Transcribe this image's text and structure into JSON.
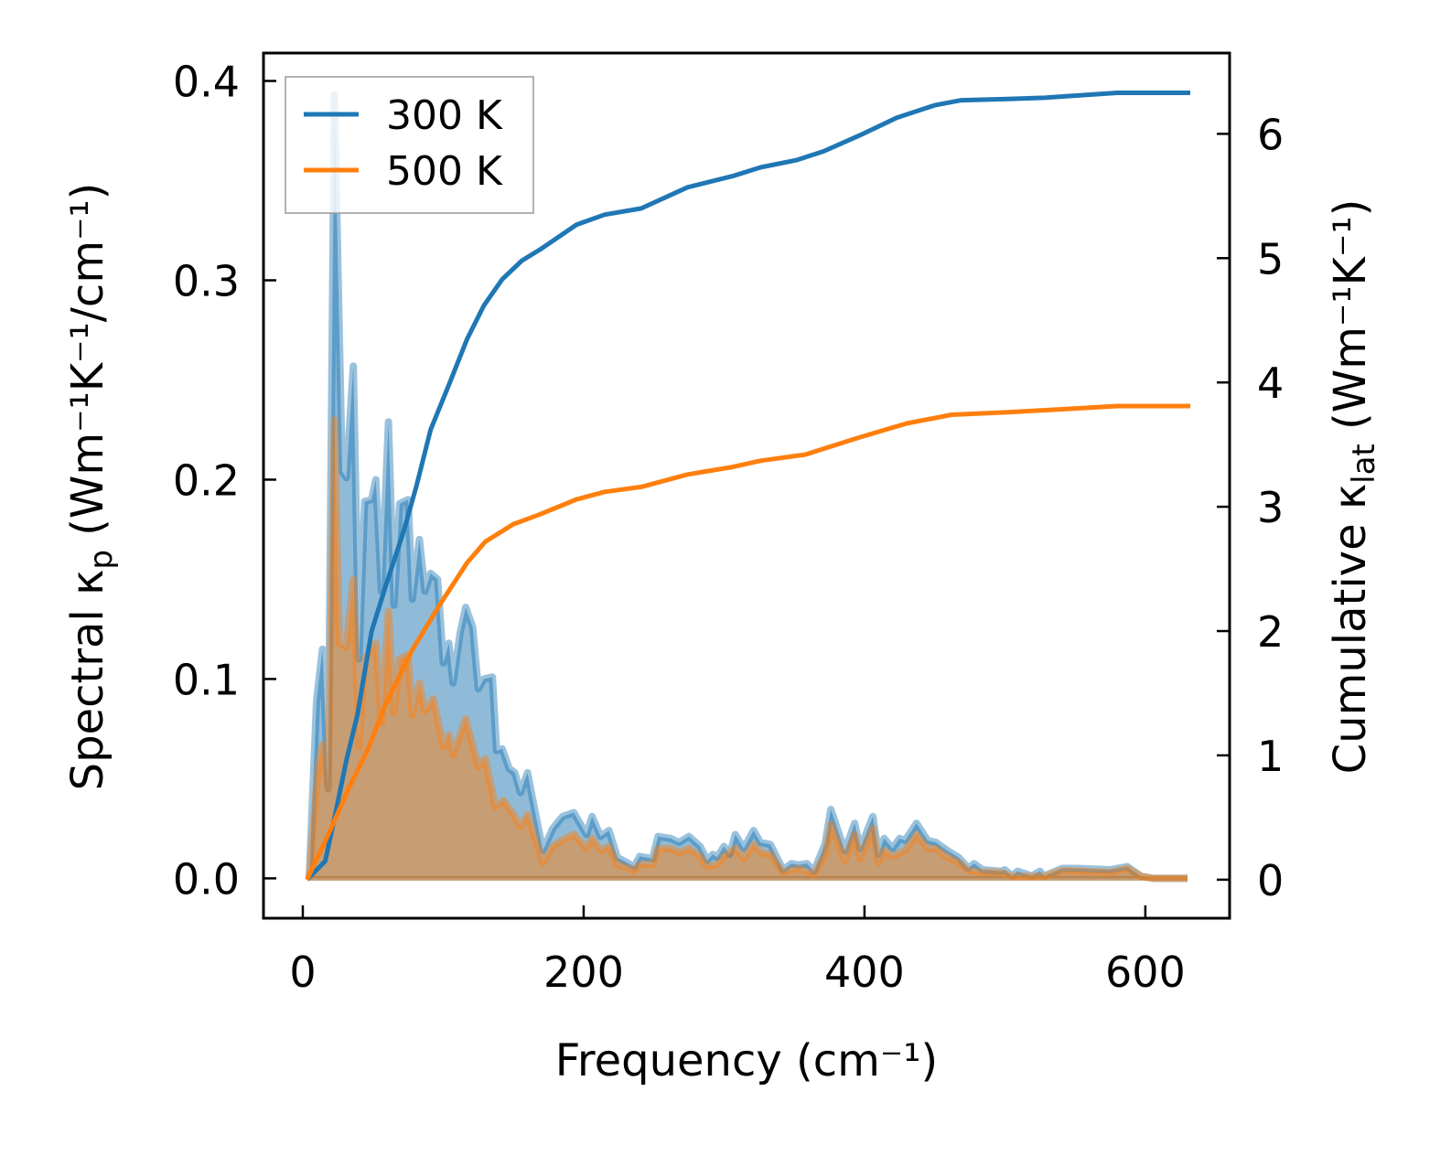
{
  "chart_data": {
    "type": "area",
    "xlabel": "Frequency (cm⁻¹)",
    "ylabel_left": {
      "prefix": "Spectral κ",
      "sub": "p",
      "suffix": " (Wm⁻¹K⁻¹/cm⁻¹)"
    },
    "ylabel_right": {
      "prefix": "Cumulative κ",
      "sub": "lat",
      "suffix": " (Wm⁻¹K⁻¹)"
    },
    "xlim": [
      -28,
      660
    ],
    "ylim_left": [
      -0.02,
      0.414
    ],
    "ylim_right": [
      -0.31,
      6.65
    ],
    "xticks": [
      0,
      200,
      400,
      600
    ],
    "xtick_labels": [
      "0",
      "200",
      "400",
      "600"
    ],
    "yticks_left": [
      0,
      0.1,
      0.2,
      0.3,
      0.4
    ],
    "ytick_labels_left": [
      "0.0",
      "0.1",
      "0.2",
      "0.3",
      "0.4"
    ],
    "yticks_right": [
      0,
      1,
      2,
      3,
      4,
      5,
      6
    ],
    "ytick_labels_right": [
      "0",
      "1",
      "2",
      "3",
      "4",
      "5",
      "6"
    ],
    "legend": {
      "placement": "top-left",
      "entries": [
        "300 K",
        "500 K"
      ]
    },
    "colors": {
      "300K": "#1f77b4",
      "500K": "#ff7f0e"
    },
    "series": [
      {
        "name": "300 K spectral",
        "axis": "left",
        "x": [
          4.6,
          9.8,
          14,
          18,
          22.5,
          28,
          31,
          36,
          40,
          44,
          49,
          52,
          56,
          61,
          65,
          69,
          75,
          78,
          83,
          87,
          91,
          96,
          100,
          104,
          107,
          112,
          116,
          121,
          125,
          129,
          135,
          138,
          142,
          147,
          151,
          155,
          160,
          165,
          171,
          178,
          185,
          193,
          202,
          206,
          212,
          218,
          224,
          236,
          240,
          249,
          253,
          262,
          268,
          275,
          283,
          288,
          292,
          295,
          300,
          304,
          308,
          314,
          321,
          326,
          333,
          342,
          348,
          353,
          359,
          364,
          372,
          376,
          386,
          393,
          397,
          406,
          410,
          414,
          420,
          425,
          429,
          437,
          445,
          451,
          458,
          467,
          474,
          478,
          484,
          497,
          500,
          505,
          509,
          519,
          525,
          528,
          541,
          551,
          575,
          587,
          597,
          606,
          630
        ],
        "y": [
          0,
          0.089,
          0.115,
          0.045,
          0.393,
          0.204,
          0.201,
          0.257,
          0.11,
          0.189,
          0.19,
          0.2,
          0.144,
          0.229,
          0.137,
          0.188,
          0.19,
          0.14,
          0.17,
          0.144,
          0.153,
          0.15,
          0.108,
          0.118,
          0.098,
          0.123,
          0.136,
          0.126,
          0.095,
          0.1,
          0.101,
          0.064,
          0.065,
          0.055,
          0.053,
          0.043,
          0.053,
          0.035,
          0.014,
          0.025,
          0.031,
          0.033,
          0.022,
          0.031,
          0.021,
          0.024,
          0.0105,
          0.0059,
          0.011,
          0.0098,
          0.021,
          0.02,
          0.018,
          0.021,
          0.016,
          0.009,
          0.012,
          0.0105,
          0.016,
          0.012,
          0.022,
          0.015,
          0.024,
          0.018,
          0.017,
          0.0043,
          0.0074,
          0.0067,
          0.0074,
          0.0036,
          0.0175,
          0.0346,
          0.0137,
          0.0276,
          0.015,
          0.031,
          0.012,
          0.02,
          0.015,
          0.02,
          0.019,
          0.0276,
          0.019,
          0.018,
          0.0144,
          0.0105,
          0.0051,
          0.0074,
          0.0043,
          0.0036,
          0.0043,
          0.0012,
          0.0036,
          0.0012,
          0.0036,
          0.0012,
          0.005,
          0.005,
          0.0043,
          0.0059,
          0.001,
          0,
          0
        ]
      },
      {
        "name": "500 K spectral",
        "axis": "left",
        "x": [
          4.6,
          11,
          14,
          18,
          22.5,
          26,
          31,
          36,
          40,
          44,
          52,
          56,
          61,
          65,
          69,
          75,
          78,
          83,
          87,
          93,
          100,
          104,
          107,
          116,
          125,
          130,
          137,
          143,
          150,
          155,
          160,
          165,
          171,
          178,
          187,
          193,
          202,
          206,
          212,
          218,
          224,
          236,
          240,
          249,
          253,
          262,
          268,
          275,
          283,
          288,
          295,
          300,
          308,
          314,
          321,
          326,
          333,
          342,
          353,
          364,
          372,
          376,
          386,
          393,
          397,
          406,
          410,
          414,
          420,
          429,
          437,
          445,
          451,
          458,
          467,
          474,
          484,
          497,
          505,
          519,
          528,
          541,
          575,
          587,
          597,
          606,
          630
        ],
        "y": [
          0,
          0.057,
          0.067,
          0.045,
          0.23,
          0.118,
          0.116,
          0.15,
          0.066,
          0.11,
          0.118,
          0.078,
          0.134,
          0.083,
          0.11,
          0.112,
          0.082,
          0.098,
          0.084,
          0.09,
          0.066,
          0.072,
          0.062,
          0.08,
          0.056,
          0.06,
          0.036,
          0.039,
          0.032,
          0.026,
          0.032,
          0.021,
          0.008,
          0.016,
          0.02,
          0.022,
          0.015,
          0.02,
          0.014,
          0.016,
          0.007,
          0.004,
          0.007,
          0.007,
          0.015,
          0.015,
          0.013,
          0.015,
          0.011,
          0.006,
          0.007,
          0.011,
          0.015,
          0.01,
          0.017,
          0.013,
          0.012,
          0.003,
          0.005,
          0.002,
          0.012,
          0.027,
          0.009,
          0.022,
          0.01,
          0.025,
          0.008,
          0.014,
          0.011,
          0.014,
          0.022,
          0.015,
          0.015,
          0.011,
          0.008,
          0.004,
          0.003,
          0.003,
          0.001,
          0.001,
          0.001,
          0.004,
          0.003,
          0.005,
          0.001,
          0,
          0
        ]
      },
      {
        "name": "300 K cumulative",
        "axis": "right",
        "x": [
          3,
          16,
          23,
          31,
          39,
          49,
          59,
          72,
          81,
          91,
          104,
          117,
          129,
          142,
          156,
          169,
          195,
          215,
          241,
          274,
          306,
          326,
          352,
          371,
          397,
          423,
          450,
          469,
          502,
          528,
          580,
          632
        ],
        "y": [
          0,
          0.15,
          0.52,
          0.96,
          1.33,
          2.0,
          2.36,
          2.81,
          3.17,
          3.62,
          3.98,
          4.35,
          4.62,
          4.83,
          4.98,
          5.07,
          5.27,
          5.35,
          5.4,
          5.57,
          5.66,
          5.73,
          5.79,
          5.86,
          5.99,
          6.13,
          6.23,
          6.27,
          6.28,
          6.29,
          6.33,
          6.33
        ]
      },
      {
        "name": "500 K cumulative",
        "axis": "right",
        "x": [
          3,
          20,
          33,
          46,
          59,
          78,
          98,
          117,
          130,
          150,
          169,
          195,
          215,
          241,
          274,
          306,
          326,
          358,
          397,
          430,
          462,
          502,
          580,
          632
        ],
        "y": [
          0,
          0.41,
          0.74,
          1.04,
          1.41,
          1.85,
          2.22,
          2.55,
          2.72,
          2.86,
          2.94,
          3.06,
          3.12,
          3.16,
          3.26,
          3.32,
          3.37,
          3.42,
          3.56,
          3.67,
          3.74,
          3.76,
          3.81,
          3.81
        ]
      }
    ]
  }
}
